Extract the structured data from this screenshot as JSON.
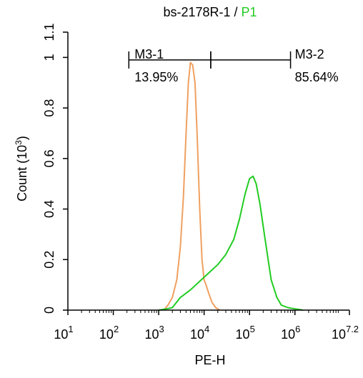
{
  "chart_data": {
    "type": "line",
    "title_main": "bs-2178R-1 / ",
    "title_accent": "P1",
    "title_accent_color": "#22cc22",
    "xlabel": "PE-H",
    "ylabel": "Count  (10",
    "ylabel_exp": "3",
    "ylabel_close": ")",
    "x_scale": "log",
    "xlim": [
      10,
      15848932
    ],
    "ylim": [
      0,
      1.1
    ],
    "x_ticks": [
      {
        "base": "10",
        "exp": "1",
        "value": 10
      },
      {
        "base": "10",
        "exp": "2",
        "value": 100
      },
      {
        "base": "10",
        "exp": "3",
        "value": 1000
      },
      {
        "base": "10",
        "exp": "4",
        "value": 10000
      },
      {
        "base": "10",
        "exp": "5",
        "value": 100000
      },
      {
        "base": "10",
        "exp": "6",
        "value": 1000000
      },
      {
        "base": "10",
        "exp": "7.2",
        "value": 15848932
      }
    ],
    "y_ticks": [
      {
        "label": "0",
        "value": 0
      },
      {
        "label": "0.2",
        "value": 0.2
      },
      {
        "label": "0.4",
        "value": 0.4
      },
      {
        "label": "0.6",
        "value": 0.6
      },
      {
        "label": "0.8",
        "value": 0.8
      },
      {
        "label": "1",
        "value": 1.0
      },
      {
        "label": "1.1",
        "value": 1.1
      }
    ],
    "series": [
      {
        "color": "#f0a060",
        "points": [
          [
            1300,
            0
          ],
          [
            1600,
            0.02
          ],
          [
            2000,
            0.05
          ],
          [
            2500,
            0.12
          ],
          [
            3000,
            0.25
          ],
          [
            3500,
            0.45
          ],
          [
            4000,
            0.7
          ],
          [
            4500,
            0.9
          ],
          [
            5000,
            0.98
          ],
          [
            5600,
            0.97
          ],
          [
            6300,
            0.9
          ],
          [
            7000,
            0.7
          ],
          [
            8000,
            0.4
          ],
          [
            9000,
            0.2
          ],
          [
            10000,
            0.12
          ],
          [
            11000,
            0.1
          ],
          [
            13000,
            0.06
          ],
          [
            15000,
            0.03
          ],
          [
            18000,
            0.01
          ],
          [
            22000,
            0
          ]
        ]
      },
      {
        "color": "#22cc22",
        "points": [
          [
            1000,
            0
          ],
          [
            1500,
            0.005
          ],
          [
            2000,
            0.01
          ],
          [
            3000,
            0.05
          ],
          [
            5000,
            0.08
          ],
          [
            10000,
            0.13
          ],
          [
            20000,
            0.18
          ],
          [
            30000,
            0.22
          ],
          [
            45000,
            0.28
          ],
          [
            60000,
            0.36
          ],
          [
            80000,
            0.46
          ],
          [
            100000,
            0.52
          ],
          [
            120000,
            0.53
          ],
          [
            140000,
            0.5
          ],
          [
            170000,
            0.42
          ],
          [
            220000,
            0.28
          ],
          [
            300000,
            0.12
          ],
          [
            400000,
            0.05
          ],
          [
            500000,
            0.02
          ],
          [
            700000,
            0.01
          ],
          [
            1000000,
            0.005
          ],
          [
            1500000,
            0
          ]
        ]
      }
    ],
    "gates": [
      {
        "name": "M3-1",
        "percent": "13.95%",
        "x_start": 220,
        "x_end": 14000,
        "y": 0.99
      },
      {
        "name": "M3-2",
        "percent": "85.64%",
        "x_start": 14000,
        "x_end": 800000,
        "y": 0.99
      }
    ]
  }
}
